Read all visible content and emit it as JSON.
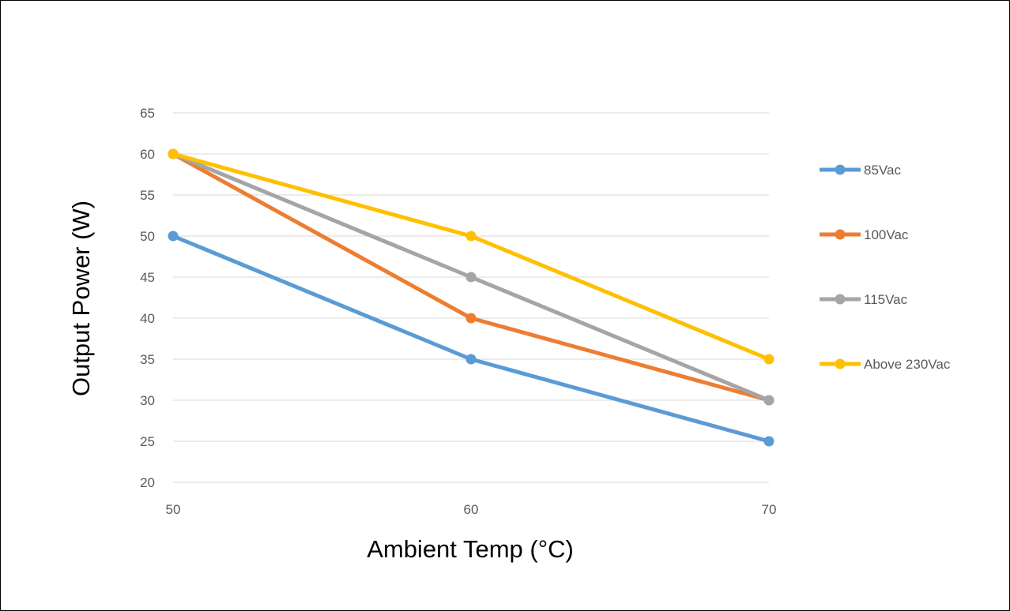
{
  "chart_data": {
    "type": "line",
    "title": "",
    "xlabel": "Ambient Temp (°C)",
    "ylabel": "Output Power (W)",
    "x": [
      50,
      60,
      70
    ],
    "x_ticks": [
      "50",
      "60",
      "70"
    ],
    "ylim": [
      20,
      65
    ],
    "y_ticks": [
      "20",
      "25",
      "30",
      "35",
      "40",
      "45",
      "50",
      "55",
      "60",
      "65"
    ],
    "grid": "horizontal",
    "legend_position": "right",
    "series": [
      {
        "name": "85Vac",
        "color": "#5B9BD5",
        "values": [
          50,
          35,
          25
        ]
      },
      {
        "name": "100Vac",
        "color": "#ED7D31",
        "values": [
          60,
          40,
          30
        ]
      },
      {
        "name": "115Vac",
        "color": "#A5A5A5",
        "values": [
          60,
          45,
          30
        ]
      },
      {
        "name": "Above 230Vac",
        "color": "#FFC000",
        "values": [
          60,
          50,
          35
        ]
      }
    ]
  }
}
